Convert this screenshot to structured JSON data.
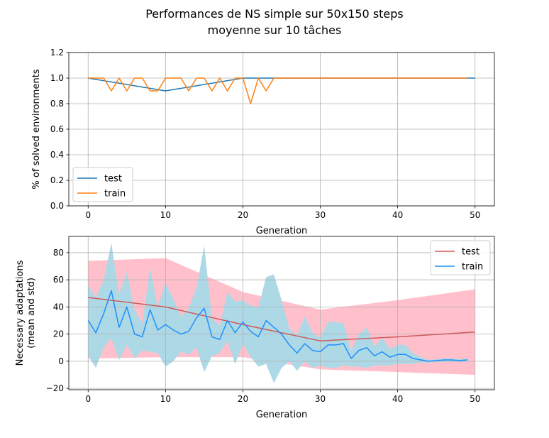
{
  "figure": {
    "title_line1": "Performances de NS simple sur 50x150 steps",
    "title_line2": "moyenne sur 10 tâches"
  },
  "chart_data": [
    {
      "type": "line",
      "xlabel": "Generation",
      "ylabel": "% of solved environments",
      "xlim": [
        -2.5,
        52.5
      ],
      "ylim": [
        0.0,
        1.2
      ],
      "xticks": [
        0,
        10,
        20,
        30,
        40,
        50
      ],
      "yticks": [
        0.0,
        0.2,
        0.4,
        0.6,
        0.8,
        1.0,
        1.2
      ],
      "xtick_labels": [
        "0",
        "10",
        "20",
        "30",
        "40",
        "50"
      ],
      "ytick_labels": [
        "0.0",
        "0.2",
        "0.4",
        "0.6",
        "0.8",
        "1.0",
        "1.2"
      ],
      "grid": true,
      "legend_position": "lower-left",
      "series": [
        {
          "name": "test",
          "color": "#1f77b4",
          "x": [
            0,
            10,
            20,
            30,
            40,
            50
          ],
          "y": [
            1.0,
            0.9,
            1.0,
            1.0,
            1.0,
            1.0
          ]
        },
        {
          "name": "train",
          "color": "#ff7f0e",
          "x": [
            0,
            1,
            2,
            3,
            4,
            5,
            6,
            7,
            8,
            9,
            10,
            11,
            12,
            13,
            14,
            15,
            16,
            17,
            18,
            19,
            20,
            21,
            22,
            23,
            24,
            25,
            26,
            27,
            28,
            29,
            30,
            31,
            32,
            33,
            34,
            35,
            36,
            37,
            38,
            39,
            40,
            41,
            42,
            43,
            44,
            45,
            46,
            47,
            48,
            49
          ],
          "y": [
            1.0,
            1.0,
            1.0,
            0.9,
            1.0,
            0.9,
            1.0,
            1.0,
            0.9,
            0.9,
            1.0,
            1.0,
            1.0,
            0.9,
            1.0,
            1.0,
            0.9,
            1.0,
            0.9,
            1.0,
            1.0,
            0.8,
            1.0,
            0.9,
            1.0,
            1.0,
            1.0,
            1.0,
            1.0,
            1.0,
            1.0,
            1.0,
            1.0,
            1.0,
            1.0,
            1.0,
            1.0,
            1.0,
            1.0,
            1.0,
            1.0,
            1.0,
            1.0,
            1.0,
            1.0,
            1.0,
            1.0,
            1.0,
            1.0,
            1.0
          ]
        }
      ]
    },
    {
      "type": "line",
      "xlabel": "Generation",
      "ylabel_line1": "Necessary adaptations",
      "ylabel_line2": "(mean and std)",
      "xlim": [
        -2.5,
        52.5
      ],
      "ylim": [
        -21,
        92
      ],
      "xticks": [
        0,
        10,
        20,
        30,
        40,
        50
      ],
      "yticks": [
        -20,
        0,
        20,
        40,
        60,
        80
      ],
      "xtick_labels": [
        "0",
        "10",
        "20",
        "30",
        "40",
        "50"
      ],
      "ytick_labels": [
        "−20",
        "0",
        "20",
        "40",
        "60",
        "80"
      ],
      "grid": true,
      "legend_position": "upper-right",
      "series": [
        {
          "name": "test",
          "color": "#cd5c5c",
          "band_color": "#ffc0cb",
          "x": [
            0,
            10,
            20,
            30,
            40,
            50
          ],
          "y": [
            47,
            40,
            27,
            15,
            18,
            21.5
          ],
          "std_lower": [
            2,
            3,
            3,
            -6,
            -8,
            -10
          ],
          "std_upper": [
            74,
            76,
            51,
            38,
            45,
            53
          ]
        },
        {
          "name": "train",
          "color": "#1e90ff",
          "band_color": "#add8e6",
          "x": [
            0,
            1,
            2,
            3,
            4,
            5,
            6,
            7,
            8,
            9,
            10,
            11,
            12,
            13,
            14,
            15,
            16,
            17,
            18,
            19,
            20,
            21,
            22,
            23,
            24,
            25,
            26,
            27,
            28,
            29,
            30,
            31,
            32,
            33,
            34,
            35,
            36,
            37,
            38,
            39,
            40,
            41,
            42,
            43,
            44,
            45,
            46,
            47,
            48,
            49
          ],
          "y": [
            30,
            21,
            35,
            52,
            25,
            40,
            20,
            18,
            38,
            23,
            27,
            23,
            20,
            22,
            32,
            39,
            18,
            16,
            30,
            21,
            29,
            22,
            18,
            30,
            25,
            20,
            12,
            6,
            13,
            8,
            7,
            12,
            12,
            13,
            2,
            8,
            10,
            4,
            7,
            3,
            5,
            5,
            2,
            1,
            0,
            0.5,
            1,
            1,
            0.5,
            1
          ],
          "std_lower": [
            4,
            -5,
            10,
            17,
            1,
            12,
            2,
            8,
            7,
            6,
            -4,
            0,
            7,
            5,
            10,
            -8,
            4,
            6,
            15,
            -2,
            13,
            3,
            -4,
            -2,
            -16,
            -5,
            0,
            -7,
            0,
            -5,
            -3,
            -5,
            -5,
            -3,
            -4,
            -4,
            -5,
            -3,
            -3,
            -3,
            -2,
            -2,
            -2,
            -1,
            -1,
            -0.5,
            -0.5,
            -0.5,
            -0.5,
            -0.5
          ],
          "std_upper": [
            56,
            47,
            60,
            87,
            49,
            66,
            38,
            28,
            69,
            40,
            58,
            46,
            33,
            39,
            54,
            85,
            32,
            26,
            51,
            44,
            45,
            41,
            40,
            62,
            64,
            45,
            24,
            19,
            33,
            21,
            17,
            29,
            29,
            28,
            8,
            20,
            25,
            11,
            17,
            9,
            12,
            12,
            6,
            3,
            1,
            1.5,
            2,
            2,
            1.5,
            2
          ]
        }
      ]
    }
  ]
}
